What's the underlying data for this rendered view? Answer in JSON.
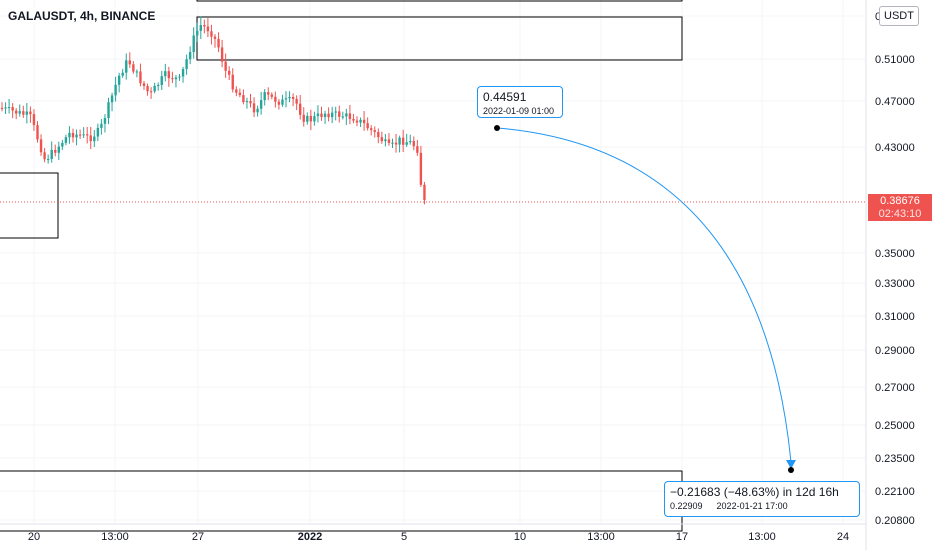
{
  "ticker": "GALAUSDT, 4h, BINANCE",
  "currency_button": "USDT",
  "price_axis": {
    "labels": [
      "0",
      "0.51000",
      "0.47000",
      "0.43000",
      "0.35000",
      "0.33000",
      "0.31000",
      "0.29000",
      "0.27000",
      "0.25000",
      "0.23500",
      "0.22100",
      "0.20800"
    ]
  },
  "time_axis": {
    "labels": [
      "20",
      "13:00",
      "27",
      "2022",
      "5",
      "10",
      "13:00",
      "17",
      "13:00",
      "24"
    ]
  },
  "current_price": {
    "value": "0.38676",
    "countdown": "02:43:10",
    "color": "#ef5350"
  },
  "projection": {
    "start_price": "0.44591",
    "start_time": "2022-01-09 01:00",
    "change_text": "−0.21683 (−48.63%) in 12d 16h",
    "end_price": "0.22909",
    "end_time": "2022-01-21  17:00",
    "color": "#2196f3"
  },
  "colors": {
    "up": "#26a69a",
    "down": "#ef5350"
  }
}
